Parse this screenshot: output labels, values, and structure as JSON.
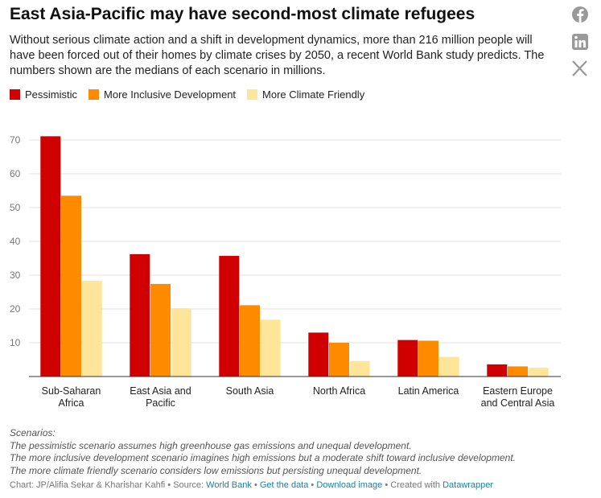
{
  "chart_data": {
    "type": "bar",
    "title": "East Asia-Pacific may have second-most climate refugees",
    "subtitle": "Without serious climate action and a shift in development dynamics, more than 216 million people will have been forced out of their homes by climate crises by 2050, a recent World Bank study predicts. The numbers shown are the medians of each scenario in millions.",
    "categories": [
      "Sub-Saharan Africa",
      "East Asia and Pacific",
      "South Asia",
      "North Africa",
      "Latin America",
      "Eastern Europe and Central Asia"
    ],
    "series": [
      {
        "name": "Pessimistic",
        "color": "#d10000",
        "values": [
          71.1,
          36.2,
          35.7,
          13,
          10.8,
          3.6
        ]
      },
      {
        "name": "More Inclusive Development",
        "color": "#fe8a00",
        "values": [
          53.5,
          27.4,
          21.1,
          10,
          10.6,
          3
        ]
      },
      {
        "name": "More Climate Friendly",
        "color": "#fee59a",
        "values": [
          28.3,
          20.2,
          16.8,
          4.6,
          5.8,
          2.6
        ]
      }
    ],
    "ylim": [
      0,
      70
    ],
    "yticks": [
      10,
      20,
      30,
      40,
      50,
      60,
      70
    ],
    "grid": true,
    "notes": [
      "Scenarios:",
      "The pessimistic scenario assumes high greenhouse gas emissions and unequal development.",
      "The more inclusive development scenario imagines high emissions but a moderate shift toward inclusive development.",
      "The more climate friendly scenario considers low emissions but persisting unequal development."
    ],
    "source": {
      "credit": "Chart: JP/Alifia Sekar & Kharishar Kahfi",
      "separator": "•",
      "source_label": "Source:",
      "source_link": "World Bank",
      "get_data": "Get the data",
      "download": "Download image",
      "created": "Created with",
      "tool": "Datawrapper"
    }
  }
}
